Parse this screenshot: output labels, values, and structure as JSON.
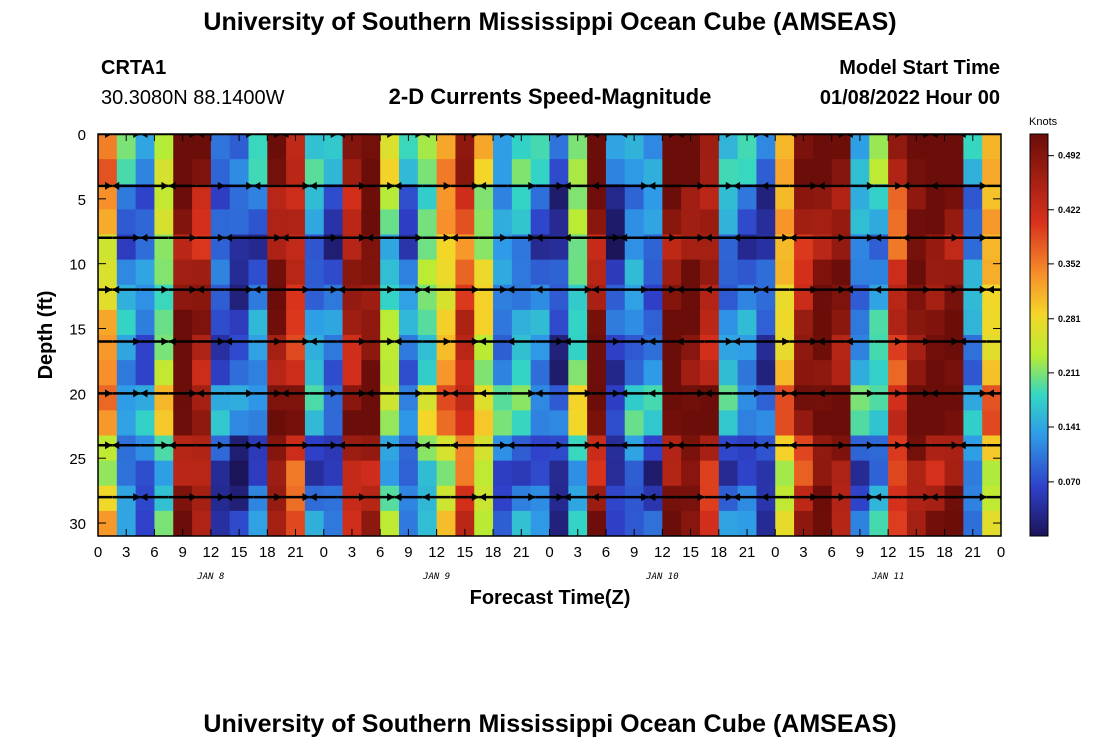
{
  "header": {
    "title": "University of Southern Mississippi Ocean Cube (AMSEAS)",
    "station": "CRTA1",
    "location": "30.3080N  88.1400W",
    "subtitle": "2-D Currents Speed-Magnitude",
    "model_start_label": "Model Start Time",
    "model_start_value": "01/08/2022 Hour 00",
    "footer_title": "University of Southern Mississippi Ocean Cube (AMSEAS)"
  },
  "chart_data": {
    "type": "heatmap",
    "xlabel": "Forecast Time(Z)",
    "ylabel": "Depth (ft)",
    "x_tick_labels": [
      "0",
      "3",
      "6",
      "9",
      "12",
      "15",
      "18",
      "21",
      "0",
      "3",
      "6",
      "9",
      "12",
      "15",
      "18",
      "21",
      "0",
      "3",
      "6",
      "9",
      "12",
      "15",
      "18",
      "21",
      "0",
      "3",
      "6",
      "9",
      "12",
      "15",
      "18",
      "21",
      "0"
    ],
    "day_labels": [
      {
        "label": "JAN 8",
        "hour": 12
      },
      {
        "label": "JAN 9",
        "hour": 36
      },
      {
        "label": "JAN 10",
        "hour": 60
      },
      {
        "label": "JAN 11",
        "hour": 84
      }
    ],
    "xlim_hours": [
      0,
      96
    ],
    "y_ticks": [
      0,
      5,
      10,
      15,
      20,
      25,
      30
    ],
    "ylim": [
      0,
      31
    ],
    "colorbar": {
      "unit": "Knots",
      "range": [
        0,
        0.52
      ],
      "tick_labels": [
        "0.492",
        "0.422",
        "0.352",
        "0.281",
        "0.211",
        "0.141",
        "0.070"
      ],
      "tick_values": [
        0.492,
        0.422,
        0.352,
        0.281,
        0.211,
        0.141,
        0.07
      ]
    },
    "vector_depths_ft": [
      0,
      4,
      8,
      12,
      16,
      20,
      24,
      28
    ],
    "column_speed_knots": [
      0.3,
      0.12,
      0.1,
      0.22,
      0.5,
      0.45,
      0.08,
      0.06,
      0.1,
      0.48,
      0.42,
      0.12,
      0.08,
      0.45,
      0.5,
      0.2,
      0.1,
      0.2,
      0.3,
      0.4,
      0.25,
      0.12,
      0.14,
      0.1,
      0.05,
      0.2,
      0.48,
      0.05,
      0.12,
      0.1,
      0.5,
      0.5,
      0.45,
      0.12,
      0.1,
      0.06,
      0.3,
      0.45,
      0.5,
      0.48,
      0.12,
      0.15,
      0.4,
      0.5,
      0.5,
      0.5,
      0.12,
      0.3
    ],
    "depth_speed_offset_knots": [
      0.05,
      0.05,
      0.0,
      0.0,
      -0.03,
      0.0,
      0.0,
      0.02,
      0.0,
      0.0,
      0.05,
      0.05,
      -0.02,
      -0.05,
      -0.02,
      0.0
    ],
    "vector_hours": [
      0,
      3,
      6,
      9,
      12,
      15,
      18,
      21,
      24,
      27,
      30,
      33,
      36,
      39,
      42,
      45,
      48,
      51,
      54,
      57,
      60,
      63,
      66,
      69,
      72,
      75,
      78,
      81,
      84,
      87,
      90,
      93,
      96
    ],
    "vector_direction_pattern": [
      1,
      1,
      -1,
      1,
      -1,
      1,
      1,
      -1,
      1,
      -1,
      1,
      1,
      -1,
      1,
      1,
      -1,
      1,
      1,
      -1,
      -1,
      1,
      -1,
      1,
      1,
      -1,
      -1,
      1,
      -1,
      1,
      1,
      -1,
      -1,
      1
    ]
  }
}
